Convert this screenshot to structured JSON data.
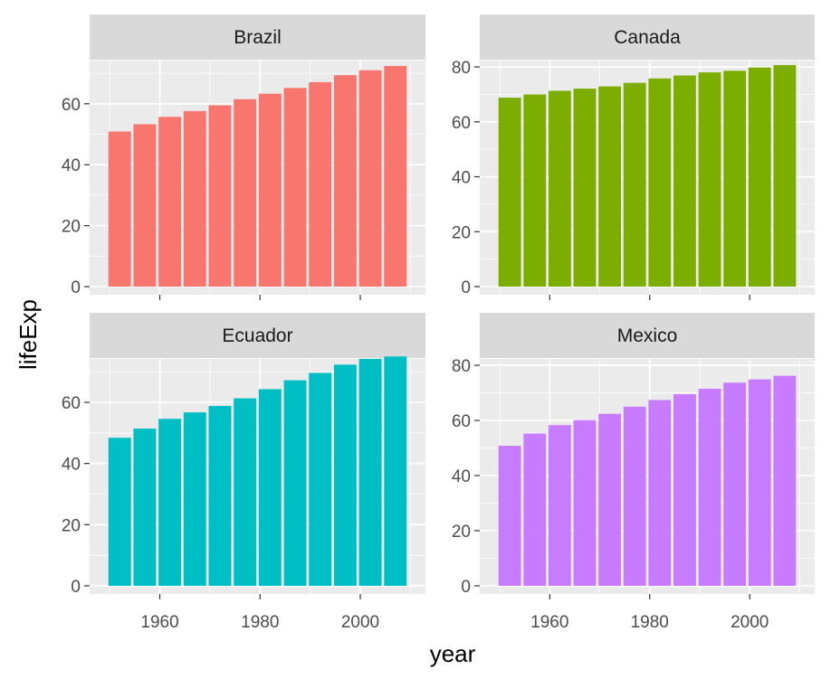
{
  "chart_data": {
    "type": "bar",
    "xlabel": "year",
    "ylabel": "lifeExp",
    "x_ticks": [
      1960,
      1980,
      2000
    ],
    "xlim": [
      1946,
      2013
    ],
    "colors": {
      "panel_bg": "#EBEBEB",
      "strip_bg": "#D9D9D9",
      "grid": "#FFFFFF"
    },
    "years": [
      1952,
      1957,
      1962,
      1967,
      1972,
      1977,
      1982,
      1987,
      1992,
      1997,
      2002,
      2007
    ],
    "panels": [
      {
        "name": "Brazil",
        "color": "#F8766D",
        "ylim": [
          0,
          73
        ],
        "y_ticks": [
          0,
          20,
          40,
          60
        ],
        "values": [
          50.9,
          53.3,
          55.7,
          57.6,
          59.5,
          61.5,
          63.3,
          65.2,
          67.1,
          69.4,
          71.0,
          72.4
        ]
      },
      {
        "name": "Canada",
        "color": "#7CAE00",
        "ylim": [
          0,
          81
        ],
        "y_ticks": [
          0,
          20,
          40,
          60,
          80
        ],
        "values": [
          68.8,
          70.0,
          71.3,
          72.1,
          72.9,
          74.2,
          75.8,
          76.9,
          78.0,
          78.6,
          79.8,
          80.7
        ]
      },
      {
        "name": "Ecuador",
        "color": "#00BFC4",
        "ylim": [
          0,
          73
        ],
        "y_ticks": [
          0,
          20,
          40,
          60
        ],
        "values": [
          48.4,
          51.4,
          54.6,
          56.7,
          58.8,
          61.3,
          64.3,
          67.2,
          69.6,
          72.3,
          74.2,
          74.99
        ]
      },
      {
        "name": "Mexico",
        "color": "#C77CFF",
        "ylim": [
          0,
          81
        ],
        "y_ticks": [
          0,
          20,
          40,
          60,
          80
        ],
        "values": [
          50.8,
          55.2,
          58.3,
          60.1,
          62.4,
          65.0,
          67.4,
          69.5,
          71.5,
          73.7,
          74.9,
          76.2
        ]
      }
    ]
  }
}
